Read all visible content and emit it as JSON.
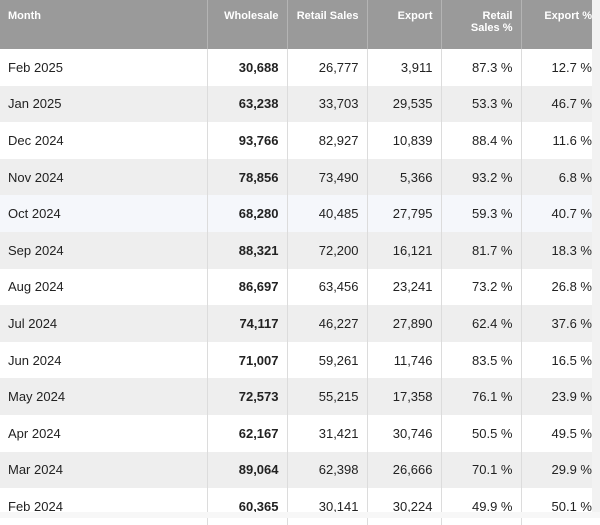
{
  "headers": [
    "Month",
    "Wholesale",
    "Retail Sales",
    "Export",
    "Retail Sales %",
    "Export %"
  ],
  "rows": [
    {
      "month": "Feb 2025",
      "wholesale": "30,688",
      "retail": "26,777",
      "export": "3,911",
      "retail_pct": "87.3 %",
      "export_pct": "12.7 %"
    },
    {
      "month": "Jan 2025",
      "wholesale": "63,238",
      "retail": "33,703",
      "export": "29,535",
      "retail_pct": "53.3 %",
      "export_pct": "46.7 %"
    },
    {
      "month": "Dec 2024",
      "wholesale": "93,766",
      "retail": "82,927",
      "export": "10,839",
      "retail_pct": "88.4 %",
      "export_pct": "11.6 %"
    },
    {
      "month": "Nov 2024",
      "wholesale": "78,856",
      "retail": "73,490",
      "export": "5,366",
      "retail_pct": "93.2 %",
      "export_pct": "6.8 %"
    },
    {
      "month": "Oct 2024",
      "wholesale": "68,280",
      "retail": "40,485",
      "export": "27,795",
      "retail_pct": "59.3 %",
      "export_pct": "40.7 %"
    },
    {
      "month": "Sep 2024",
      "wholesale": "88,321",
      "retail": "72,200",
      "export": "16,121",
      "retail_pct": "81.7 %",
      "export_pct": "18.3 %"
    },
    {
      "month": "Aug 2024",
      "wholesale": "86,697",
      "retail": "63,456",
      "export": "23,241",
      "retail_pct": "73.2 %",
      "export_pct": "26.8 %"
    },
    {
      "month": "Jul 2024",
      "wholesale": "74,117",
      "retail": "46,227",
      "export": "27,890",
      "retail_pct": "62.4 %",
      "export_pct": "37.6 %"
    },
    {
      "month": "Jun 2024",
      "wholesale": "71,007",
      "retail": "59,261",
      "export": "11,746",
      "retail_pct": "83.5 %",
      "export_pct": "16.5 %"
    },
    {
      "month": "May 2024",
      "wholesale": "72,573",
      "retail": "55,215",
      "export": "17,358",
      "retail_pct": "76.1 %",
      "export_pct": "23.9 %"
    },
    {
      "month": "Apr 2024",
      "wholesale": "62,167",
      "retail": "31,421",
      "export": "30,746",
      "retail_pct": "50.5 %",
      "export_pct": "49.5 %"
    },
    {
      "month": "Mar 2024",
      "wholesale": "89,064",
      "retail": "62,398",
      "export": "26,666",
      "retail_pct": "70.1 %",
      "export_pct": "29.9 %"
    },
    {
      "month": "Feb 2024",
      "wholesale": "60,365",
      "retail": "30,141",
      "export": "30,224",
      "retail_pct": "49.9 %",
      "export_pct": "50.1 %"
    }
  ],
  "colors": {
    "header_bg": "#9a9a9a",
    "row_alt": "#eeeeee",
    "row_highlight": "#f5f7fb"
  }
}
